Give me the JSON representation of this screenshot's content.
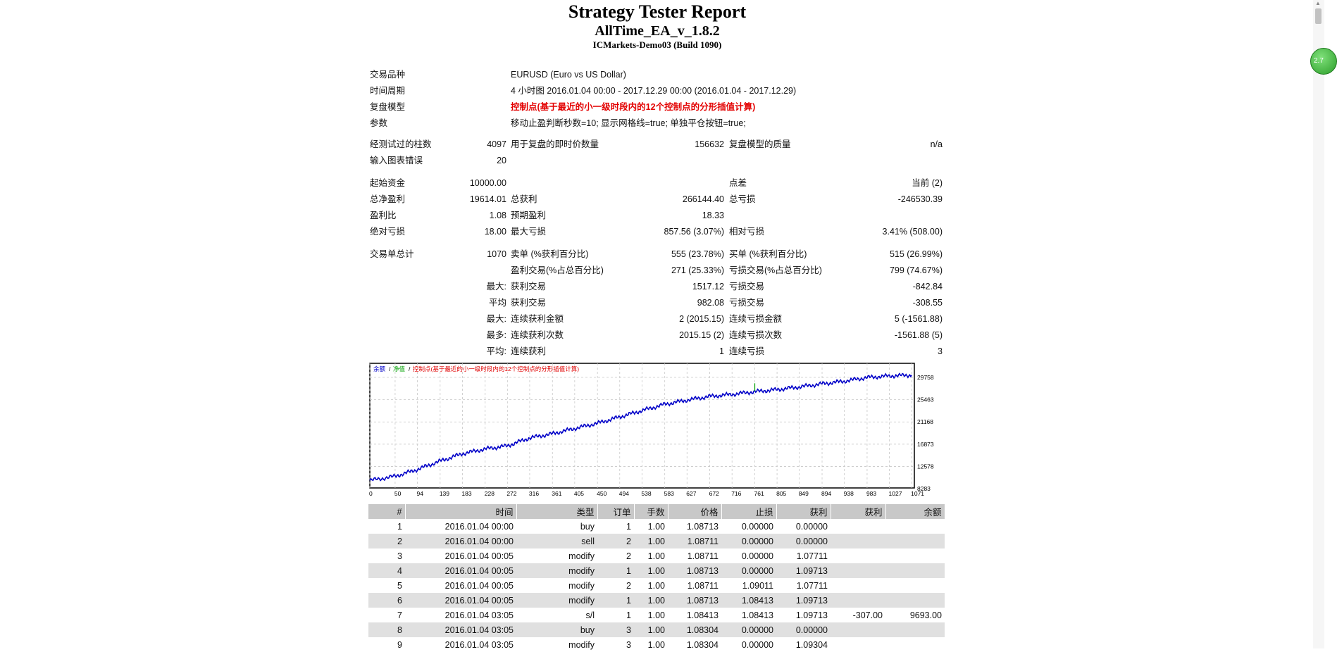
{
  "header": {
    "title": "Strategy Tester Report",
    "ea_name": "AllTime_EA_v_1.8.2",
    "server": "ICMarkets-Demo03 (Build 1090)"
  },
  "info": [
    {
      "label": "交易品种",
      "value": "EURUSD (Euro vs US Dollar)"
    },
    {
      "label": "时间周期",
      "value": "4 小时图 2016.01.04 00:00 - 2017.12.29 00:00 (2016.01.04 - 2017.12.29)"
    },
    {
      "label": "复盘模型",
      "value": "控制点(基于最近的小一级时段内的12个控制点的分形插值计算)"
    },
    {
      "label": "参数",
      "value": "移动止盈判断秒数=10; 显示网格线=true; 单独平仓按钮=true;"
    }
  ],
  "stats": {
    "bars_label": "经测试过的柱数",
    "bars_value": "4097",
    "ticks_label": "用于复盘的即时价数量",
    "ticks_value": "156632",
    "quality_label": "复盘模型的质量",
    "quality_value": "n/a",
    "errors_label": "输入图表错误",
    "errors_value": "20",
    "deposit_label": "起始资金",
    "deposit_value": "10000.00",
    "spread_label": "点差",
    "spread_value": "当前 (2)",
    "net_label": "总净盈利",
    "net_value": "19614.01",
    "gross_profit_label": "总获利",
    "gross_profit_value": "266144.40",
    "gross_loss_label": "总亏损",
    "gross_loss_value": "-246530.39",
    "pf_label": "盈利比",
    "pf_value": "1.08",
    "expected_label": "预期盈利",
    "expected_value": "18.33",
    "abs_dd_label": "绝对亏损",
    "abs_dd_value": "18.00",
    "max_dd_label": "最大亏损",
    "max_dd_value": "857.56 (3.07%)",
    "rel_dd_label": "相对亏损",
    "rel_dd_value": "3.41% (508.00)",
    "trades_label": "交易单总计",
    "trades_value": "1070",
    "short_label": "卖单 (%获利百分比)",
    "short_value": "555 (23.78%)",
    "long_label": "买单 (%获利百分比)",
    "long_value": "515 (26.99%)",
    "profit_trades_label": "盈利交易(%占总百分比)",
    "profit_trades_value": "271 (25.33%)",
    "loss_trades_label": "亏损交易(%占总百分比)",
    "loss_trades_value": "799 (74.67%)",
    "largest_prefix": "最大:",
    "largest_profit_label": "获利交易",
    "largest_profit_value": "1517.12",
    "largest_loss_label": "亏损交易",
    "largest_loss_value": "-842.84",
    "average_prefix": "平均",
    "avg_profit_label": "获利交易",
    "avg_profit_value": "982.08",
    "avg_loss_label": "亏损交易",
    "avg_loss_value": "-308.55",
    "max_prefix": "最大:",
    "max_consec_wins_label": "连续获利金额",
    "max_consec_wins_value": "2 (2015.15)",
    "max_consec_losses_label": "连续亏损金额",
    "max_consec_losses_value": "5 (-1561.88)",
    "maximal_prefix": "最多:",
    "maximal_wins_label": "连续获利次数",
    "maximal_wins_value": "2015.15 (2)",
    "maximal_losses_label": "连续亏损次数",
    "maximal_losses_value": "-1561.88 (5)",
    "avg_consec_prefix": "平均:",
    "avg_consec_wins_label": "连续获利",
    "avg_consec_wins_value": "1",
    "avg_consec_losses_label": "连续亏损",
    "avg_consec_losses_value": "3"
  },
  "chart_data": {
    "type": "line",
    "legend": [
      "余额",
      "净值",
      "控制点(基于最近的小一级时段内的12个控制点的分形插值计算)"
    ],
    "legend_colors": [
      "#0000c8",
      "#00a000",
      "#e00000"
    ],
    "x_ticks": [
      "0",
      "50",
      "94",
      "139",
      "183",
      "228",
      "272",
      "316",
      "361",
      "405",
      "450",
      "494",
      "538",
      "583",
      "627",
      "672",
      "716",
      "761",
      "805",
      "849",
      "894",
      "938",
      "983",
      "1027",
      "1071"
    ],
    "y_ticks": [
      "29758",
      "25463",
      "21168",
      "16873",
      "12578",
      "8283"
    ],
    "xlim": [
      0,
      1071
    ],
    "ylim": [
      8283,
      32000
    ],
    "series": [
      {
        "name": "余额",
        "x": [
          0,
          50,
          94,
          139,
          183,
          228,
          272,
          316,
          361,
          405,
          450,
          494,
          538,
          583,
          627,
          672,
          716,
          761,
          805,
          849,
          894,
          938,
          983,
          1027,
          1071
        ],
        "values": [
          9700,
          10500,
          11800,
          13400,
          14800,
          15700,
          16300,
          17800,
          18600,
          19600,
          20600,
          21800,
          23000,
          24200,
          25000,
          25700,
          26100,
          26600,
          27000,
          27500,
          28100,
          28600,
          29300,
          29600,
          29758
        ]
      }
    ],
    "equity_spike": {
      "x": 761,
      "value": 28200
    }
  },
  "trades": {
    "headers": [
      "#",
      "时间",
      "类型",
      "订单",
      "手数",
      "价格",
      "止损",
      "获利",
      "获利",
      "余额"
    ],
    "rows": [
      [
        "1",
        "2016.01.04 00:00",
        "buy",
        "1",
        "1.00",
        "1.08713",
        "0.00000",
        "0.00000",
        "",
        ""
      ],
      [
        "2",
        "2016.01.04 00:00",
        "sell",
        "2",
        "1.00",
        "1.08711",
        "0.00000",
        "0.00000",
        "",
        ""
      ],
      [
        "3",
        "2016.01.04 00:05",
        "modify",
        "2",
        "1.00",
        "1.08711",
        "0.00000",
        "1.07711",
        "",
        ""
      ],
      [
        "4",
        "2016.01.04 00:05",
        "modify",
        "1",
        "1.00",
        "1.08713",
        "0.00000",
        "1.09713",
        "",
        ""
      ],
      [
        "5",
        "2016.01.04 00:05",
        "modify",
        "2",
        "1.00",
        "1.08711",
        "1.09011",
        "1.07711",
        "",
        ""
      ],
      [
        "6",
        "2016.01.04 00:05",
        "modify",
        "1",
        "1.00",
        "1.08713",
        "1.08413",
        "1.09713",
        "",
        ""
      ],
      [
        "7",
        "2016.01.04 03:05",
        "s/l",
        "1",
        "1.00",
        "1.08413",
        "1.08413",
        "1.09713",
        "-307.00",
        "9693.00"
      ],
      [
        "8",
        "2016.01.04 03:05",
        "buy",
        "3",
        "1.00",
        "1.08304",
        "0.00000",
        "0.00000",
        "",
        ""
      ],
      [
        "9",
        "2016.01.04 03:05",
        "modify",
        "3",
        "1.00",
        "1.08304",
        "0.00000",
        "1.09304",
        "",
        ""
      ]
    ]
  },
  "badge": {
    "text": "2.7"
  }
}
